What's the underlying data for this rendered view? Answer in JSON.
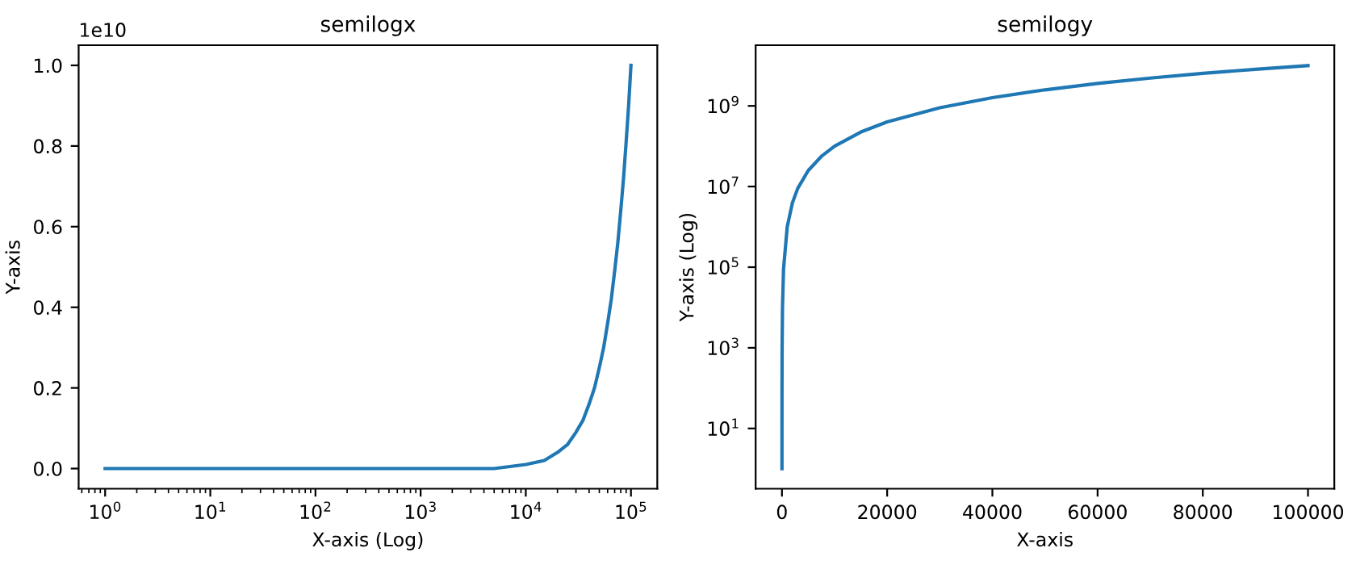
{
  "chart_data": [
    {
      "type": "line",
      "title": "semilogx",
      "xlabel": "X-axis (Log)",
      "ylabel": "Y-axis",
      "annotations": [
        "1e10"
      ],
      "log": "x",
      "grid": false,
      "x": [
        1,
        10,
        100,
        1000,
        5000,
        10000,
        15000,
        20000,
        25000,
        30000,
        35000,
        40000,
        45000,
        50000,
        55000,
        60000,
        65000,
        70000,
        75000,
        80000,
        85000,
        90000,
        95000,
        100000
      ],
      "series": [
        {
          "color": "#1f77b4",
          "values": [
            0,
            0,
            0,
            0,
            0,
            0.01,
            0.02,
            0.04,
            0.06,
            0.09,
            0.12,
            0.16,
            0.2,
            0.25,
            0.3,
            0.36,
            0.42,
            0.49,
            0.56,
            0.64,
            0.72,
            0.81,
            0.9,
            1.0
          ]
        }
      ],
      "xlim": [
        0.56,
        178000
      ],
      "ylim": [
        -0.05,
        1.05
      ],
      "xticks": [
        {
          "value": 1,
          "label": "10$^{0}$"
        },
        {
          "value": 10,
          "label": "10$^{1}$"
        },
        {
          "value": 100,
          "label": "10$^{2}$"
        },
        {
          "value": 1000,
          "label": "10$^{3}$"
        },
        {
          "value": 10000,
          "label": "10$^{4}$"
        },
        {
          "value": 100000,
          "label": "10$^{5}$"
        }
      ],
      "yticks": [
        {
          "value": 0,
          "label": "0.0"
        },
        0.2,
        0.4,
        0.6,
        0.8,
        {
          "value": 1,
          "label": "1.0"
        }
      ]
    },
    {
      "type": "line",
      "title": "semilogy",
      "xlabel": "X-axis",
      "ylabel": "Y-axis (Log)",
      "log": "y",
      "grid": false,
      "x": [
        1,
        3,
        10,
        30,
        100,
        300,
        1000,
        2000,
        3000,
        5000,
        7500,
        10000,
        15000,
        20000,
        30000,
        40000,
        50000,
        60000,
        70000,
        80000,
        90000,
        100000
      ],
      "series": [
        {
          "color": "#1f77b4",
          "values": [
            1,
            9,
            100,
            900,
            10000,
            90000,
            1000000,
            4000000,
            9000000,
            25000000,
            56000000,
            100000000,
            225000000,
            400000000,
            900000000,
            1600000000,
            2500000000,
            3600000000,
            4900000000,
            6400000000,
            8100000000,
            10000000000
          ]
        }
      ],
      "xlim": [
        -5000,
        105000
      ],
      "ylim": [
        0.32,
        32000000000
      ],
      "xticks": [
        0,
        20000,
        40000,
        60000,
        80000,
        100000
      ],
      "yticks": [
        {
          "value": 10,
          "label": "10$^{1}$"
        },
        {
          "value": 1000,
          "label": "10$^{3}$"
        },
        {
          "value": 100000,
          "label": "10$^{5}$"
        },
        {
          "value": 10000000,
          "label": "10$^{7}$"
        },
        {
          "value": 1000000000,
          "label": "10$^{9}$"
        }
      ]
    }
  ]
}
